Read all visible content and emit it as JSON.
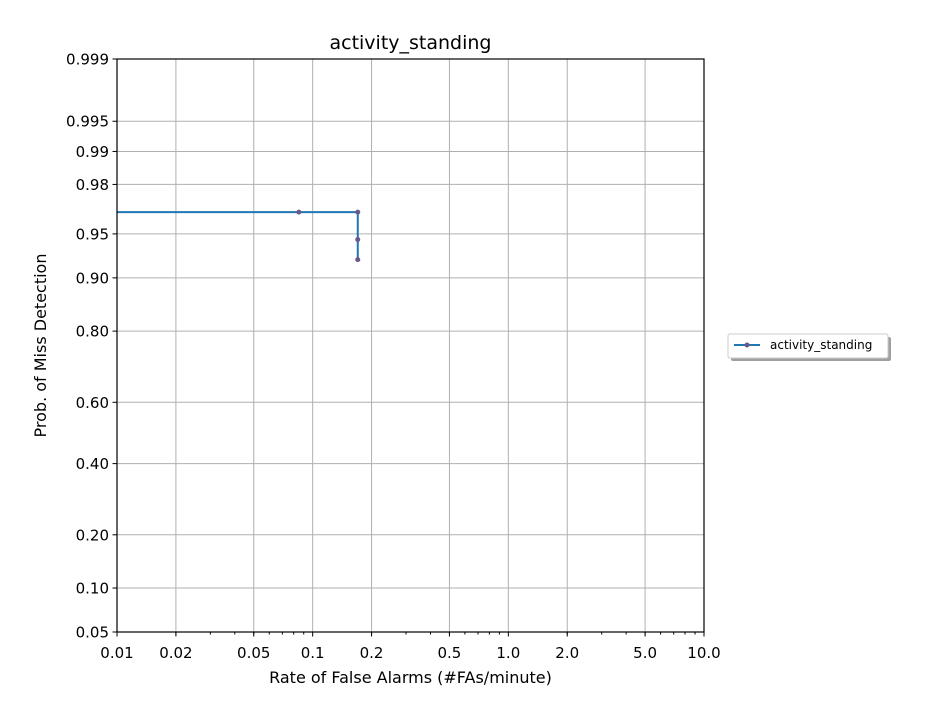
{
  "chart_data": {
    "type": "line",
    "title": "activity_standing",
    "xlabel": "Rate of False Alarms (#FAs/minute)",
    "ylabel": "Prob. of Miss Detection",
    "x_scale": "log",
    "y_scale": "normal-deviate",
    "xlim": [
      0.01,
      10.0
    ],
    "ylim": [
      0.05,
      0.999
    ],
    "x_ticks": [
      0.01,
      0.02,
      0.05,
      0.1,
      0.2,
      0.5,
      1.0,
      2.0,
      5.0,
      10.0
    ],
    "x_tick_labels": [
      "0.01",
      "0.02",
      "0.05",
      "0.1",
      "0.2",
      "0.5",
      "1.0",
      "2.0",
      "5.0",
      "10.0"
    ],
    "y_ticks": [
      0.05,
      0.1,
      0.2,
      0.4,
      0.6,
      0.8,
      0.9,
      0.95,
      0.98,
      0.99,
      0.995,
      0.999
    ],
    "y_tick_labels": [
      "0.05",
      "0.10",
      "0.20",
      "0.40",
      "0.60",
      "0.80",
      "0.90",
      "0.95",
      "0.98",
      "0.99",
      "0.995",
      "0.999"
    ],
    "grid": true,
    "legend_position": "right",
    "series": [
      {
        "name": "activity_standing",
        "color": "#1f77b4",
        "marker_color": "#6a5a8c",
        "x": [
          0.01,
          0.085,
          0.17,
          0.17,
          0.17
        ],
        "y": [
          0.966,
          0.966,
          0.966,
          0.945,
          0.924
        ],
        "marker_x": [
          0.085,
          0.17,
          0.17,
          0.17
        ],
        "marker_y": [
          0.966,
          0.966,
          0.945,
          0.924
        ]
      }
    ]
  }
}
